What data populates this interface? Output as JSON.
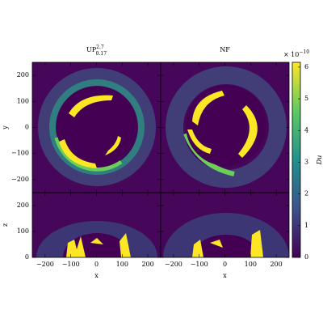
{
  "chart_data": [
    {
      "type": "image",
      "title": "UP",
      "title_sup": "2.7",
      "title_sub": "0.17",
      "ylabel": "y",
      "xlim": [
        -250,
        250
      ],
      "ylim": [
        -250,
        250
      ],
      "yticks": [
        {
          "value": -200,
          "label": "−200"
        },
        {
          "value": -100,
          "label": "−100"
        },
        0,
        100,
        200
      ]
    },
    {
      "type": "image",
      "title": "NF",
      "xlim": [
        -250,
        250
      ],
      "ylim": [
        -250,
        250
      ]
    },
    {
      "type": "image",
      "xlabel": "x",
      "ylabel": "z",
      "xlim": [
        -250,
        250
      ],
      "ylim": [
        0,
        250
      ],
      "xticks": [
        {
          "value": -200,
          "label": "−200"
        },
        {
          "value": -100,
          "label": "−100"
        },
        0,
        100,
        200
      ],
      "yticks": [
        0,
        100,
        200
      ]
    },
    {
      "type": "image",
      "xlabel": "x",
      "xlim": [
        -250,
        250
      ],
      "ylim": [
        0,
        250
      ],
      "xticks": [
        {
          "value": -200,
          "label": "−200"
        },
        {
          "value": -100,
          "label": "−100"
        },
        0,
        100,
        200
      ]
    },
    {
      "type": "colorbar",
      "label": "Du",
      "multiplier": "× 10",
      "exponent": "−10",
      "ylim": [
        0,
        6.15
      ],
      "yticks": [
        0,
        1,
        2,
        3,
        4,
        5,
        6
      ],
      "colors": [
        "#440154",
        "#3b528b",
        "#21918c",
        "#5ec962",
        "#fde725"
      ]
    }
  ]
}
